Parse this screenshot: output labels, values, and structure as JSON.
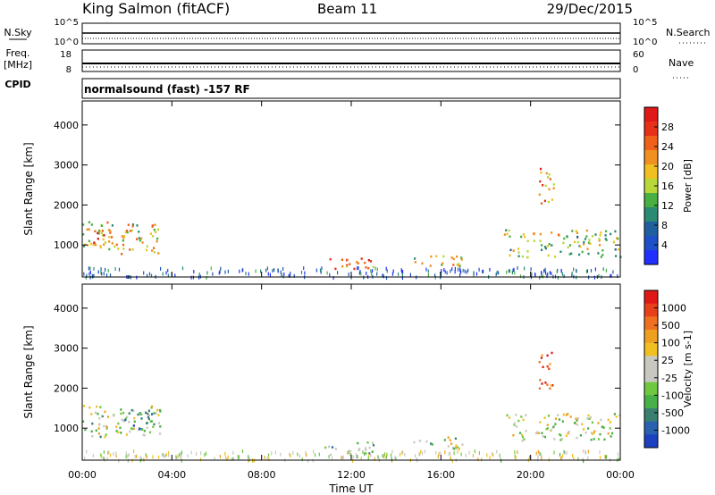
{
  "header": {
    "title": "King Salmon (fitACF)",
    "beam": "Beam 11",
    "date": "29/Dec/2015",
    "mode": "normalsound (fast) -157 RF"
  },
  "side_labels": {
    "nsky": "N.Sky",
    "freq_line1": "Freq.",
    "freq_line2": "[MHz]",
    "cpid": "CPID",
    "nsearch": "N.Search",
    "nave": "Nave"
  },
  "top_axes": {
    "noise_left_ticks": [
      "10^5",
      "10^0"
    ],
    "noise_right_ticks": [
      "10^5",
      "10^0"
    ],
    "freq_left_ticks": [
      "18",
      "8"
    ],
    "nave_right_ticks": [
      "60",
      "0"
    ]
  },
  "chart_data": [
    {
      "type": "heatmap",
      "name": "power",
      "ylabel": "Slant Range [km]",
      "ylim": [
        200,
        4600
      ],
      "yticks": [
        1000,
        2000,
        3000,
        4000
      ],
      "xlim": [
        0,
        24
      ],
      "colorbar": {
        "label": "Power [dB]",
        "ticks": [
          "28",
          "24",
          "20",
          "16",
          "12",
          "8",
          "4"
        ],
        "colors": [
          "#2230ff",
          "#1e4fc8",
          "#1f5fa0",
          "#2a8a72",
          "#48b040",
          "#b8d83a",
          "#f0c020",
          "#f09020",
          "#f06018",
          "#e83018",
          "#e01818"
        ]
      },
      "echo_regions": [
        {
          "t": [
            0.0,
            3.5
          ],
          "r": [
            800,
            1600
          ],
          "level": 0.55
        },
        {
          "t": [
            0.3,
            1.8
          ],
          "r": [
            1000,
            1400
          ],
          "level": 0.8
        },
        {
          "t": [
            10.8,
            13.0
          ],
          "r": [
            350,
            700
          ],
          "level": 0.7
        },
        {
          "t": [
            14.5,
            17.0
          ],
          "r": [
            500,
            800
          ],
          "level": 0.6
        },
        {
          "t": [
            18.8,
            24.0
          ],
          "r": [
            700,
            1400
          ],
          "level": 0.5
        },
        {
          "t": [
            20.3,
            21.0
          ],
          "r": [
            2000,
            3000
          ],
          "level": 0.7
        }
      ]
    },
    {
      "type": "heatmap",
      "name": "velocity",
      "ylabel": "Slant Range [km]",
      "ylim": [
        200,
        4600
      ],
      "yticks": [
        1000,
        2000,
        3000,
        4000
      ],
      "xlim": [
        0,
        24
      ],
      "xticks": [
        "00:00",
        "04:00",
        "08:00",
        "12:00",
        "16:00",
        "20:00",
        "00:00"
      ],
      "xlabel": "Time UT",
      "colorbar": {
        "label": "Velocity [m s-1]",
        "ticks": [
          "1000",
          "500",
          "100",
          "25",
          "-25",
          "-100",
          "-500",
          "-1000"
        ],
        "colors": [
          "#1c40c0",
          "#2a60b0",
          "#3a8070",
          "#48b048",
          "#70c840",
          "#c8c8c0",
          "#c8c8c0",
          "#f0c020",
          "#f0a020",
          "#f07020",
          "#e84018",
          "#e01818"
        ]
      },
      "echo_regions": [
        {
          "t": [
            0.0,
            3.5
          ],
          "r": [
            800,
            1600
          ],
          "level": 0.45
        },
        {
          "t": [
            1.5,
            3.2
          ],
          "r": [
            900,
            1500
          ],
          "level": 0.25
        },
        {
          "t": [
            10.8,
            13.0
          ],
          "r": [
            350,
            700
          ],
          "level": 0.35
        },
        {
          "t": [
            14.5,
            17.0
          ],
          "r": [
            500,
            800
          ],
          "level": 0.45
        },
        {
          "t": [
            18.8,
            24.0
          ],
          "r": [
            700,
            1400
          ],
          "level": 0.5
        },
        {
          "t": [
            20.3,
            21.0
          ],
          "r": [
            2000,
            3000
          ],
          "level": 0.85
        }
      ]
    }
  ]
}
